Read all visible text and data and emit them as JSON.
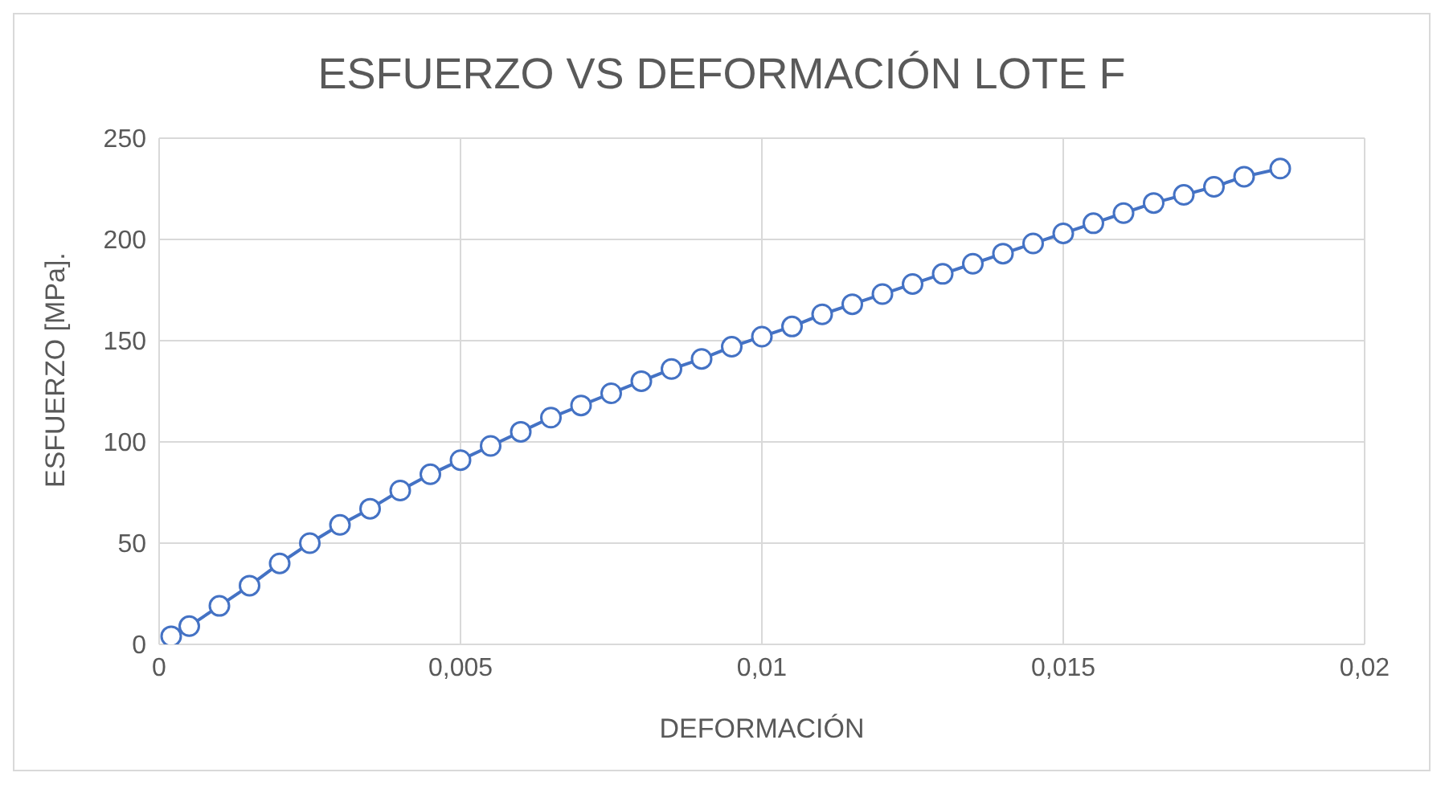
{
  "chart_data": {
    "type": "line",
    "title": "ESFUERZO VS DEFORMACIÓN LOTE F",
    "xlabel": "DEFORMACIÓN",
    "ylabel": "ESFUERZO [MPa].",
    "x": [
      0.0002,
      0.0005,
      0.001,
      0.0015,
      0.002,
      0.0025,
      0.003,
      0.0035,
      0.004,
      0.0045,
      0.005,
      0.0055,
      0.006,
      0.0065,
      0.007,
      0.0075,
      0.008,
      0.0085,
      0.009,
      0.0095,
      0.01,
      0.0105,
      0.011,
      0.0115,
      0.012,
      0.0125,
      0.013,
      0.0135,
      0.014,
      0.0145,
      0.015,
      0.0155,
      0.016,
      0.0165,
      0.017,
      0.0175,
      0.018,
      0.0186
    ],
    "series": [
      {
        "color": "#4472c4",
        "values": [
          4,
          9,
          19,
          29,
          40,
          50,
          59,
          67,
          76,
          84,
          91,
          98,
          105,
          112,
          118,
          124,
          130,
          136,
          141,
          147,
          152,
          157,
          163,
          168,
          173,
          178,
          183,
          188,
          193,
          198,
          203,
          208,
          213,
          218,
          222,
          226,
          231,
          235
        ]
      }
    ],
    "xlim": [
      0,
      0.02
    ],
    "xticks": [
      0,
      {
        "value": 0.005,
        "label": "0,005"
      },
      {
        "value": 0.01,
        "label": "0,01"
      },
      {
        "value": 0.015,
        "label": "0,015"
      },
      {
        "value": 0.02,
        "label": "0,02"
      }
    ],
    "ylim": [
      0,
      250
    ],
    "yticks": [
      0,
      50,
      100,
      150,
      200,
      250
    ],
    "grid": true,
    "marker": "circle",
    "line_style": "solid"
  }
}
